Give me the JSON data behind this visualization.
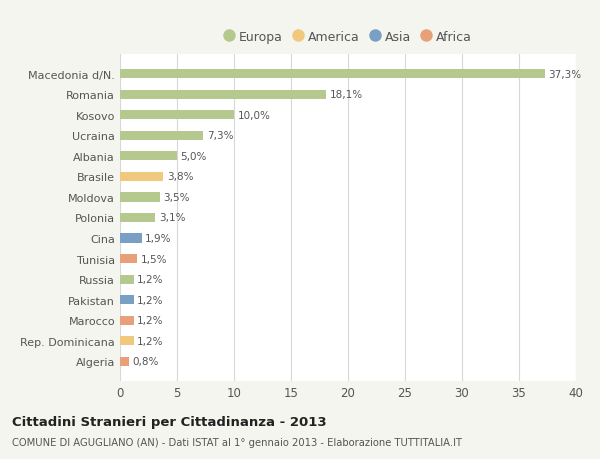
{
  "categories": [
    "Macedonia d/N.",
    "Romania",
    "Kosovo",
    "Ucraina",
    "Albania",
    "Brasile",
    "Moldova",
    "Polonia",
    "Cina",
    "Tunisia",
    "Russia",
    "Pakistan",
    "Marocco",
    "Rep. Dominicana",
    "Algeria"
  ],
  "values": [
    37.3,
    18.1,
    10.0,
    7.3,
    5.0,
    3.8,
    3.5,
    3.1,
    1.9,
    1.5,
    1.2,
    1.2,
    1.2,
    1.2,
    0.8
  ],
  "labels": [
    "37,3%",
    "18,1%",
    "10,0%",
    "7,3%",
    "5,0%",
    "3,8%",
    "3,5%",
    "3,1%",
    "1,9%",
    "1,5%",
    "1,2%",
    "1,2%",
    "1,2%",
    "1,2%",
    "0,8%"
  ],
  "colors": [
    "#b5c98e",
    "#b5c98e",
    "#b5c98e",
    "#b5c98e",
    "#b5c98e",
    "#f0c97e",
    "#b5c98e",
    "#b5c98e",
    "#7a9fc4",
    "#e8a07a",
    "#b5c98e",
    "#7a9fc4",
    "#e8a07a",
    "#f0c97e",
    "#e8a07a"
  ],
  "legend": {
    "Europa": "#b5c98e",
    "America": "#f0c97e",
    "Asia": "#7a9fc4",
    "Africa": "#e8a07a"
  },
  "xlim": [
    0,
    40
  ],
  "xticks": [
    0,
    5,
    10,
    15,
    20,
    25,
    30,
    35,
    40
  ],
  "title": "Cittadini Stranieri per Cittadinanza - 2013",
  "subtitle": "COMUNE DI AGUGLIANO (AN) - Dati ISTAT al 1° gennaio 2013 - Elaborazione TUTTITALIA.IT",
  "background_color": "#f5f5f0",
  "bar_background": "#ffffff",
  "grid_color": "#d8d8d8",
  "text_color": "#555555"
}
